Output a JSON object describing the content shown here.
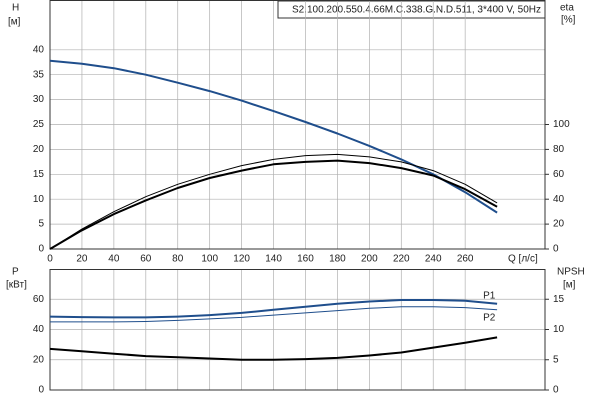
{
  "chart_data": [
    {
      "type": "line",
      "title": "S2.100.200.550.4.66M.C.338.G.N.D.511, 3*400 V, 50Hz",
      "ylabel": "H",
      "ylabel_unit": "[м]",
      "y2label": "eta",
      "y2label_unit": "[%]",
      "xlabel": "Q [л/с]",
      "xlim": [
        0,
        310
      ],
      "xticks": [
        0,
        20,
        40,
        60,
        80,
        100,
        120,
        140,
        160,
        180,
        200,
        220,
        240,
        260
      ],
      "ylim": [
        0,
        50
      ],
      "yticks": [
        0,
        5,
        10,
        15,
        20,
        25,
        30,
        35,
        40
      ],
      "y2lim": [
        0,
        200
      ],
      "y2ticks": [
        0,
        20,
        40,
        60,
        80,
        100
      ],
      "grid": true,
      "x": [
        0,
        20,
        40,
        60,
        80,
        100,
        120,
        140,
        160,
        180,
        200,
        220,
        240,
        260,
        280
      ],
      "series": [
        {
          "color": "#1f4e8c",
          "line_width": 2,
          "values": [
            37.8,
            37.2,
            36.3,
            35,
            33.4,
            31.7,
            29.8,
            27.7,
            25.5,
            23.2,
            20.7,
            18,
            15,
            11.4,
            7.3
          ]
        },
        {
          "color": "#000000",
          "line_width": 1,
          "axis": "y2",
          "values": [
            0,
            16,
            30,
            42,
            52,
            60,
            67,
            72,
            75,
            76,
            74,
            70,
            63,
            52,
            37
          ]
        },
        {
          "color": "#000000",
          "line_width": 2,
          "axis": "y2",
          "values": [
            0,
            15,
            28,
            39,
            49,
            57,
            63,
            68,
            70,
            71,
            69,
            65,
            59,
            48,
            34
          ]
        }
      ]
    },
    {
      "type": "line",
      "ylabel": "P",
      "ylabel_unit": "[кВт]",
      "y2label": "NPSH",
      "y2label_unit": "[м]",
      "xlim": [
        0,
        310
      ],
      "xticks": [
        0,
        20,
        40,
        60,
        80,
        100,
        120,
        140,
        160,
        180,
        200,
        220,
        240,
        260
      ],
      "ylim": [
        0,
        80
      ],
      "yticks": [
        0,
        20,
        40,
        60
      ],
      "y2lim": [
        0,
        20
      ],
      "y2ticks": [
        0,
        5,
        10,
        15
      ],
      "grid": true,
      "x": [
        0,
        20,
        40,
        60,
        80,
        100,
        120,
        140,
        160,
        180,
        200,
        220,
        240,
        260,
        280
      ],
      "series": [
        {
          "name": "P1",
          "color": "#1f4e8c",
          "line_width": 2,
          "values": [
            48.5,
            48.2,
            48,
            48,
            48.5,
            49.5,
            51,
            53,
            55,
            57,
            58.5,
            59.5,
            59.5,
            59,
            57
          ]
        },
        {
          "name": "P2",
          "color": "#1f4e8c",
          "line_width": 1,
          "values": [
            45,
            45,
            45,
            45.3,
            46,
            47,
            48,
            49.5,
            51,
            52.5,
            54,
            55,
            55,
            54.5,
            53
          ]
        },
        {
          "color": "#000000",
          "line_width": 2,
          "axis": "y2",
          "values": [
            6.8,
            6.4,
            6,
            5.6,
            5.4,
            5.2,
            5,
            5,
            5.1,
            5.3,
            5.7,
            6.2,
            7,
            7.8,
            8.7
          ]
        }
      ]
    }
  ]
}
